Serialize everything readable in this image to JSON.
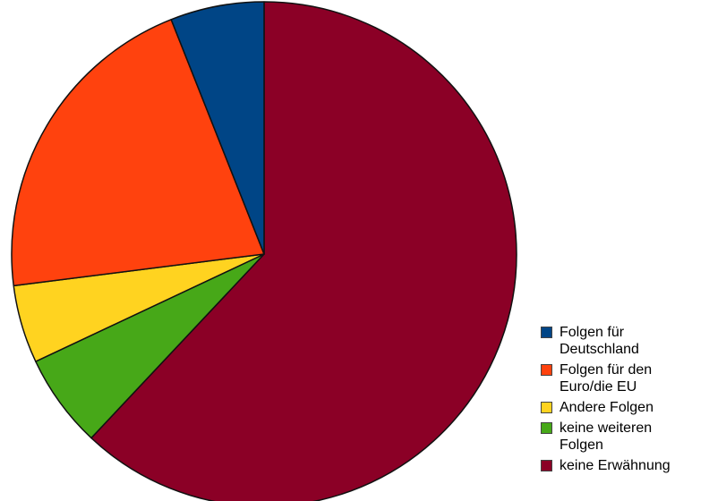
{
  "chart_data": {
    "type": "pie",
    "start": "top",
    "direction": "clockwise",
    "slices": [
      {
        "label": "keine Erwähnung",
        "value": 62.0,
        "color": "#8b0026"
      },
      {
        "label": "keine weiteren Folgen",
        "value": 6.0,
        "color": "#47a818"
      },
      {
        "label": "Andere Folgen",
        "value": 5.0,
        "color": "#ffd320"
      },
      {
        "label": "Folgen für den Euro/die EU",
        "value": 21.0,
        "color": "#ff420e"
      },
      {
        "label": "Folgen für Deutschland",
        "value": 6.0,
        "color": "#004586"
      }
    ],
    "legend_position": "bottom-right",
    "legend": [
      {
        "label": "Folgen für Deutschland",
        "color": "#004586"
      },
      {
        "label": "Folgen für den Euro/die EU",
        "color": "#ff420e"
      },
      {
        "label": "Andere Folgen",
        "color": "#ffd320"
      },
      {
        "label": "keine weiteren Folgen",
        "color": "#47a818"
      },
      {
        "label": "keine Erwähnung",
        "color": "#8b0026"
      }
    ]
  }
}
